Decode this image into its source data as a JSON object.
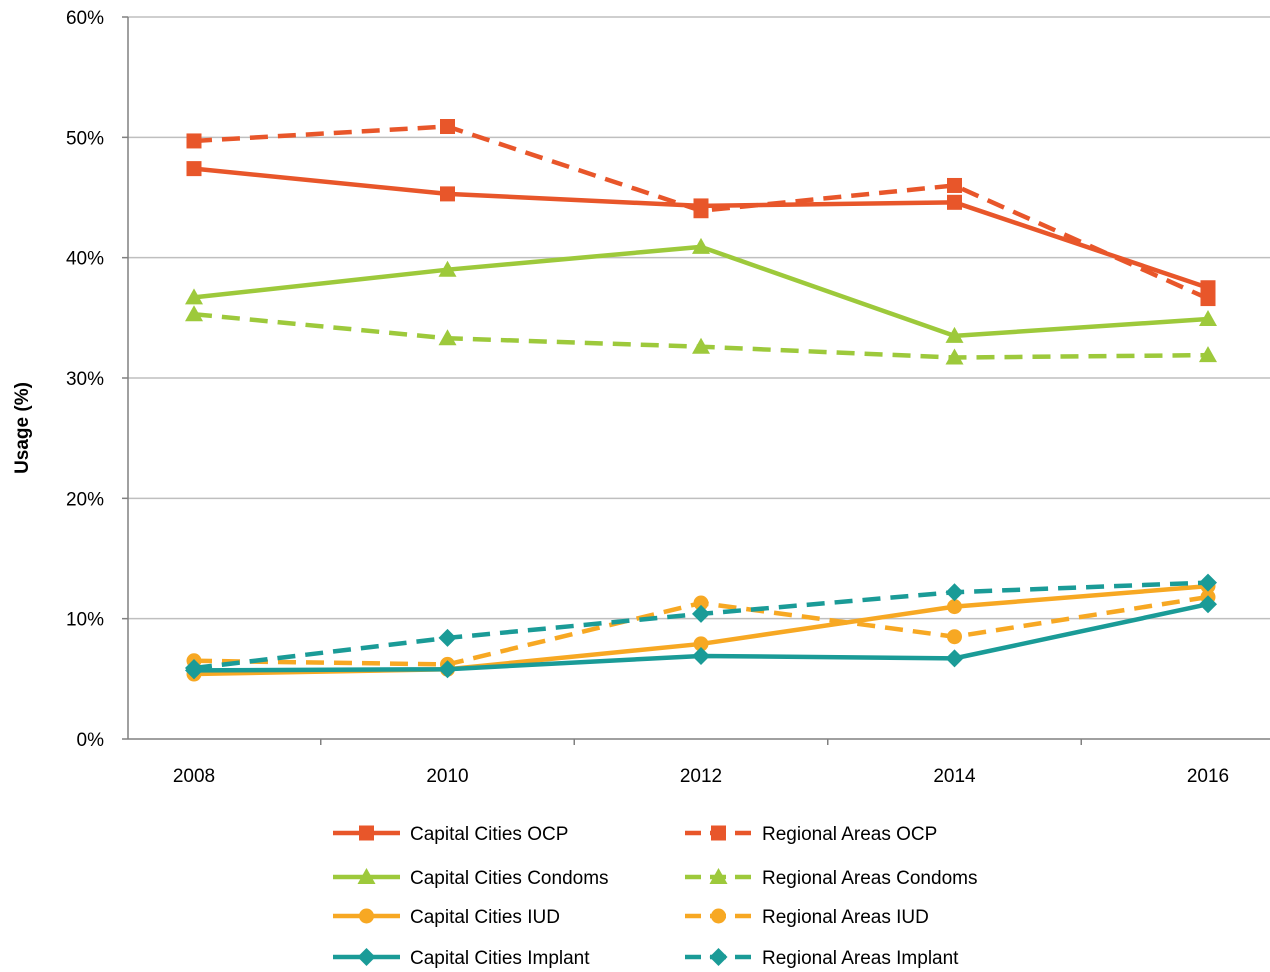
{
  "chart_data": {
    "type": "line",
    "title": "",
    "xlabel": "",
    "ylabel": "Usage (%)",
    "x": [
      2008,
      2010,
      2012,
      2014,
      2016
    ],
    "x_tick_labels": [
      "2008",
      "2010",
      "2012",
      "2014",
      "2016"
    ],
    "ylim": [
      0,
      60
    ],
    "y_tick_labels": [
      "0%",
      "10%",
      "20%",
      "30%",
      "40%",
      "50%",
      "60%"
    ],
    "grid": "horizontal",
    "legend_position": "bottom",
    "series": [
      {
        "name": "Capital Cities OCP",
        "values": [
          47.4,
          45.3,
          44.3,
          44.6,
          37.5
        ],
        "color": "#e8562a",
        "dash": "solid",
        "marker": "square"
      },
      {
        "name": "Regional Areas OCP",
        "values": [
          49.7,
          50.9,
          43.9,
          46.0,
          36.6
        ],
        "color": "#e8562a",
        "dash": "dashed",
        "marker": "square"
      },
      {
        "name": "Capital Cities Condoms",
        "values": [
          36.7,
          39.0,
          40.9,
          33.5,
          34.9
        ],
        "color": "#9dc93b",
        "dash": "solid",
        "marker": "triangle"
      },
      {
        "name": "Regional Areas Condoms",
        "values": [
          35.3,
          33.3,
          32.6,
          31.7,
          31.9
        ],
        "color": "#9dc93b",
        "dash": "dashed",
        "marker": "triangle"
      },
      {
        "name": "Capital Cities IUD",
        "values": [
          5.4,
          5.8,
          7.9,
          11.0,
          12.7
        ],
        "color": "#f7a823",
        "dash": "solid",
        "marker": "circle"
      },
      {
        "name": "Regional Areas IUD",
        "values": [
          6.5,
          6.2,
          11.3,
          8.5,
          11.8
        ],
        "color": "#f7a823",
        "dash": "dashed",
        "marker": "circle"
      },
      {
        "name": "Capital Cities Implant",
        "values": [
          5.7,
          5.8,
          6.9,
          6.7,
          11.2
        ],
        "color": "#1a9b97",
        "dash": "solid",
        "marker": "diamond"
      },
      {
        "name": "Regional Areas Implant",
        "values": [
          5.9,
          8.4,
          10.4,
          12.2,
          13.0
        ],
        "color": "#1a9b97",
        "dash": "dashed",
        "marker": "diamond"
      }
    ]
  }
}
